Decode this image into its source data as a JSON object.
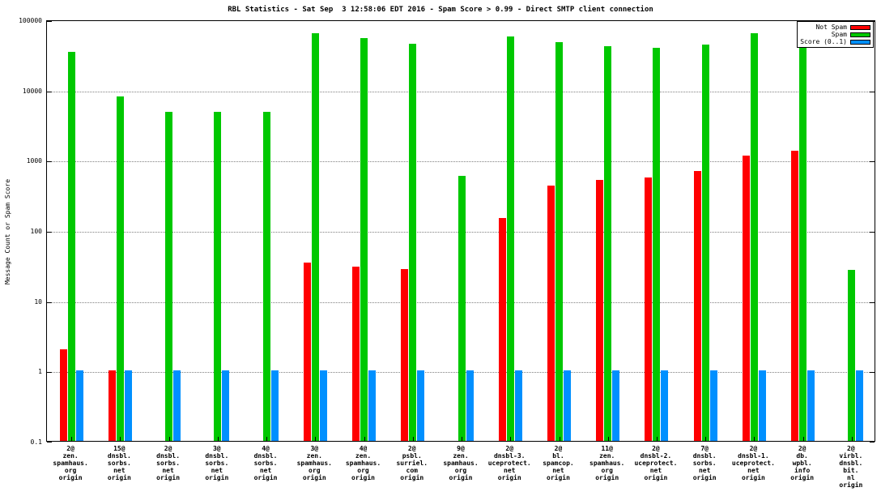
{
  "title": "RBL Statistics - Sat Sep  3 12:58:06 EDT 2016 - Spam Score > 0.99 - Direct SMTP client connection",
  "chart_data": {
    "type": "bar",
    "title": "RBL Statistics - Sat Sep  3 12:58:06 EDT 2016 - Spam Score > 0.99 - Direct SMTP client connection",
    "xlabel": "",
    "ylabel": "Message Count or Spam Score",
    "yscale": "log",
    "ylim": [
      0.1,
      100000
    ],
    "yticks": [
      0.1,
      1,
      10,
      100,
      1000,
      10000,
      100000
    ],
    "ytick_labels": [
      "0.1",
      "1",
      "10",
      "100",
      "1000",
      "10000",
      "100000"
    ],
    "grid": true,
    "legend_position": "top-right",
    "colors": {
      "not_spam": "#ff0000",
      "spam": "#00c800",
      "score": "#0090ff"
    },
    "legend": [
      {
        "label": "Not Spam",
        "color": "#ff0000"
      },
      {
        "label": "Spam",
        "color": "#00c800"
      },
      {
        "label": "Score (0..1)",
        "color": "#0090ff"
      }
    ],
    "categories": [
      "2@\nzen.\nspamhaus.\norg\norigin",
      "15@\ndnsbl.\nsorbs.\nnet\norigin",
      "2@\ndnsbl.\nsorbs.\nnet\norigin",
      "3@\ndnsbl.\nsorbs.\nnet\norigin",
      "4@\ndnsbl.\nsorbs.\nnet\norigin",
      "3@\nzen.\nspamhaus.\norg\norigin",
      "4@\nzen.\nspamhaus.\norg\norigin",
      "2@\npsbl.\nsurriel.\ncom\norigin",
      "9@\nzen.\nspamhaus.\norg\norigin",
      "2@\ndnsbl-3.\nuceprotect.\nnet\norigin",
      "2@\nbl.\nspamcop.\nnet\norigin",
      "11@\nzen.\nspamhaus.\norg\norigin",
      "2@\ndnsbl-2.\nuceprotect.\nnet\norigin",
      "7@\ndnsbl.\nsorbs.\nnet\norigin",
      "2@\ndnsbl-1.\nuceprotect.\nnet\norigin",
      "2@\ndb.\nwpbl.\ninfo\norigin",
      "2@\nvirbl.\ndnsbl.\nbit.\nnl\norigin"
    ],
    "series": [
      {
        "name": "Not Spam",
        "color": "#ff0000",
        "values": [
          2,
          1,
          null,
          null,
          null,
          35,
          30,
          28,
          null,
          150,
          430,
          520,
          560,
          700,
          1150,
          1350,
          null
        ]
      },
      {
        "name": "Spam",
        "color": "#00c800",
        "values": [
          35000,
          8000,
          4800,
          4800,
          4800,
          63000,
          55000,
          45000,
          600,
          58000,
          47000,
          42000,
          40000,
          44000,
          63000,
          60000,
          27
        ]
      },
      {
        "name": "Score (0..1)",
        "color": "#0090ff",
        "values": [
          1,
          1,
          1,
          1,
          1,
          1,
          1,
          1,
          1,
          1,
          1,
          1,
          1,
          1,
          1,
          1,
          1
        ]
      }
    ]
  }
}
